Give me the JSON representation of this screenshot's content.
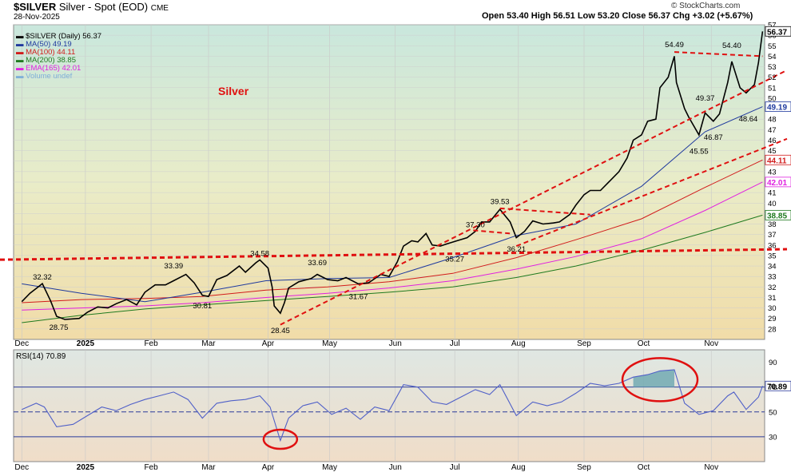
{
  "header": {
    "symbol": "$SILVER",
    "name": "Silver - Spot (EOD)",
    "exchange": "CME",
    "date": "28-Nov-2025",
    "ohlc": "Open 53.40  High 56.51  Low 53.20  Close 56.37  Chg +3.02 (+5.67%)",
    "brand": "© StockCharts.com"
  },
  "legend": [
    {
      "label": "$SILVER (Daily) 56.37",
      "color": "#000000"
    },
    {
      "label": "MA(50) 49.19",
      "color": "#1f3a9e"
    },
    {
      "label": "MA(100) 44.11",
      "color": "#d11b1b"
    },
    {
      "label": "MA(200) 38.85",
      "color": "#1f7a1f"
    },
    {
      "label": "EMA(165) 42.01",
      "color": "#e020e0"
    },
    {
      "label": "Volume undef",
      "color": "#7fb0d8"
    }
  ],
  "annotation_title": "Silver",
  "chart_data": [
    {
      "type": "line",
      "title": "$SILVER (Daily)",
      "y_ticks": [
        28,
        29,
        30,
        31,
        32,
        33,
        34,
        35,
        36,
        37,
        38,
        39,
        40,
        41,
        42,
        43,
        44,
        45,
        46,
        47,
        48,
        49,
        50,
        51,
        52,
        53,
        54,
        55,
        56,
        57
      ],
      "ylim": [
        27,
        57
      ],
      "x_tick_labels": [
        "Dec",
        "2025",
        "Feb",
        "Mar",
        "Apr",
        "May",
        "Jun",
        "Jul",
        "Aug",
        "Sep",
        "Oct",
        "Nov"
      ],
      "price_points": [
        [
          "2024-12-02",
          30.6
        ],
        [
          "2024-12-06",
          31.4
        ],
        [
          "2024-12-10",
          32.0
        ],
        [
          "2024-12-12",
          32.32
        ],
        [
          "2024-12-16",
          30.7
        ],
        [
          "2024-12-19",
          29.2
        ],
        [
          "2024-12-23",
          28.9
        ],
        [
          "2024-12-30",
          29.0
        ],
        [
          "2025-01-03",
          29.6
        ],
        [
          "2025-01-08",
          30.1
        ],
        [
          "2025-01-13",
          30.0
        ],
        [
          "2025-01-17",
          30.4
        ],
        [
          "2025-01-22",
          30.8
        ],
        [
          "2025-01-27",
          30.3
        ],
        [
          "2025-01-31",
          31.5
        ],
        [
          "2025-02-05",
          32.2
        ],
        [
          "2025-02-10",
          32.2
        ],
        [
          "2025-02-14",
          32.6
        ],
        [
          "2025-02-20",
          33.2
        ],
        [
          "2025-02-24",
          32.4
        ],
        [
          "2025-02-28",
          31.2
        ],
        [
          "2025-03-03",
          31.1
        ],
        [
          "2025-03-07",
          32.7
        ],
        [
          "2025-03-12",
          33.1
        ],
        [
          "2025-03-18",
          34.0
        ],
        [
          "2025-03-21",
          33.4
        ],
        [
          "2025-03-26",
          34.3
        ],
        [
          "2025-03-28",
          34.58
        ],
        [
          "2025-04-01",
          33.8
        ],
        [
          "2025-04-03",
          32.0
        ],
        [
          "2025-04-04",
          30.2
        ],
        [
          "2025-04-07",
          29.5
        ],
        [
          "2025-04-09",
          30.5
        ],
        [
          "2025-04-11",
          31.9
        ],
        [
          "2025-04-16",
          32.5
        ],
        [
          "2025-04-22",
          32.8
        ],
        [
          "2025-04-25",
          33.2
        ],
        [
          "2025-04-30",
          32.7
        ],
        [
          "2025-05-05",
          32.6
        ],
        [
          "2025-05-09",
          32.9
        ],
        [
          "2025-05-15",
          32.3
        ],
        [
          "2025-05-20",
          32.4
        ],
        [
          "2025-05-26",
          33.2
        ],
        [
          "2025-05-30",
          33.0
        ],
        [
          "2025-06-03",
          34.4
        ],
        [
          "2025-06-06",
          35.9
        ],
        [
          "2025-06-10",
          36.4
        ],
        [
          "2025-06-13",
          36.3
        ],
        [
          "2025-06-17",
          37.1
        ],
        [
          "2025-06-20",
          36.0
        ],
        [
          "2025-06-24",
          35.9
        ],
        [
          "2025-06-27",
          36.1
        ],
        [
          "2025-07-02",
          36.4
        ],
        [
          "2025-07-07",
          36.7
        ],
        [
          "2025-07-11",
          37.3
        ],
        [
          "2025-07-14",
          38.2
        ],
        [
          "2025-07-18",
          38.2
        ],
        [
          "2025-07-23",
          39.4
        ],
        [
          "2025-07-28",
          38.2
        ],
        [
          "2025-07-31",
          36.7
        ],
        [
          "2025-08-04",
          37.3
        ],
        [
          "2025-08-08",
          38.3
        ],
        [
          "2025-08-13",
          38.0
        ],
        [
          "2025-08-18",
          38.1
        ],
        [
          "2025-08-21",
          38.2
        ],
        [
          "2025-08-26",
          38.9
        ],
        [
          "2025-08-29",
          39.8
        ],
        [
          "2025-09-02",
          40.8
        ],
        [
          "2025-09-05",
          41.2
        ],
        [
          "2025-09-10",
          41.2
        ],
        [
          "2025-09-15",
          42.2
        ],
        [
          "2025-09-19",
          43.0
        ],
        [
          "2025-09-23",
          44.3
        ],
        [
          "2025-09-26",
          46.0
        ],
        [
          "2025-09-30",
          46.5
        ],
        [
          "2025-10-03",
          47.8
        ],
        [
          "2025-10-07",
          48.0
        ],
        [
          "2025-10-09",
          51.0
        ],
        [
          "2025-10-13",
          52.0
        ],
        [
          "2025-10-16",
          54.0
        ],
        [
          "2025-10-17",
          51.5
        ],
        [
          "2025-10-21",
          49.0
        ],
        [
          "2025-10-23",
          48.2
        ],
        [
          "2025-10-28",
          46.5
        ],
        [
          "2025-10-31",
          48.6
        ],
        [
          "2025-11-04",
          47.8
        ],
        [
          "2025-11-07",
          48.5
        ],
        [
          "2025-11-11",
          51.5
        ],
        [
          "2025-11-13",
          53.5
        ],
        [
          "2025-11-17",
          51.0
        ],
        [
          "2025-11-20",
          50.5
        ],
        [
          "2025-11-24",
          51.3
        ],
        [
          "2025-11-26",
          53.4
        ],
        [
          "2025-11-28",
          56.37
        ]
      ],
      "labels": [
        {
          "text": "32.32",
          "date": "2024-12-12",
          "y": 32.32
        },
        {
          "text": "28.75",
          "date": "2024-12-20",
          "y": 28.75
        },
        {
          "text": "33.39",
          "date": "2025-02-14",
          "y": 33.39
        },
        {
          "text": "30.81",
          "date": "2025-02-28",
          "y": 30.81
        },
        {
          "text": "34.58",
          "date": "2025-03-28",
          "y": 34.58
        },
        {
          "text": "28.45",
          "date": "2025-04-07",
          "y": 28.45
        },
        {
          "text": "33.69",
          "date": "2025-04-25",
          "y": 33.69
        },
        {
          "text": "31.67",
          "date": "2025-05-15",
          "y": 31.67
        },
        {
          "text": "37.30",
          "date": "2025-07-11",
          "y": 37.3
        },
        {
          "text": "35.27",
          "date": "2025-07-01",
          "y": 35.27
        },
        {
          "text": "39.53",
          "date": "2025-07-23",
          "y": 39.53
        },
        {
          "text": "36.21",
          "date": "2025-07-31",
          "y": 36.21
        },
        {
          "text": "54.49",
          "date": "2025-10-16",
          "y": 54.49
        },
        {
          "text": "49.37",
          "date": "2025-10-31",
          "y": 49.37
        },
        {
          "text": "45.55",
          "date": "2025-10-28",
          "y": 45.55
        },
        {
          "text": "46.87",
          "date": "2025-11-04",
          "y": 46.87
        },
        {
          "text": "54.40",
          "date": "2025-11-13",
          "y": 54.4
        },
        {
          "text": "48.64",
          "date": "2025-11-21",
          "y": 48.64
        }
      ],
      "ma50": [
        [
          "2024-12-02",
          32.3
        ],
        [
          "2024-12-31",
          31.4
        ],
        [
          "2025-01-31",
          30.6
        ],
        [
          "2025-02-28",
          31.5
        ],
        [
          "2025-03-31",
          32.6
        ],
        [
          "2025-04-30",
          32.8
        ],
        [
          "2025-05-30",
          32.9
        ],
        [
          "2025-06-30",
          34.8
        ],
        [
          "2025-07-31",
          36.9
        ],
        [
          "2025-08-29",
          38.0
        ],
        [
          "2025-09-30",
          41.6
        ],
        [
          "2025-10-31",
          46.8
        ],
        [
          "2025-11-28",
          49.19
        ]
      ],
      "ma100": [
        [
          "2024-12-02",
          30.5
        ],
        [
          "2024-12-31",
          30.8
        ],
        [
          "2025-01-31",
          30.9
        ],
        [
          "2025-02-28",
          31.1
        ],
        [
          "2025-03-31",
          31.7
        ],
        [
          "2025-04-30",
          32.0
        ],
        [
          "2025-05-30",
          32.5
        ],
        [
          "2025-06-30",
          33.3
        ],
        [
          "2025-07-31",
          34.8
        ],
        [
          "2025-08-29",
          36.5
        ],
        [
          "2025-09-30",
          38.5
        ],
        [
          "2025-10-31",
          41.5
        ],
        [
          "2025-11-28",
          44.11
        ]
      ],
      "ma200": [
        [
          "2024-12-02",
          28.6
        ],
        [
          "2024-12-31",
          29.3
        ],
        [
          "2025-01-31",
          29.9
        ],
        [
          "2025-02-28",
          30.3
        ],
        [
          "2025-03-31",
          30.7
        ],
        [
          "2025-04-30",
          31.1
        ],
        [
          "2025-05-30",
          31.5
        ],
        [
          "2025-06-30",
          32.0
        ],
        [
          "2025-07-31",
          32.9
        ],
        [
          "2025-08-29",
          34.0
        ],
        [
          "2025-09-30",
          35.5
        ],
        [
          "2025-10-31",
          37.2
        ],
        [
          "2025-11-28",
          38.85
        ]
      ],
      "ema165": [
        [
          "2024-12-02",
          29.8
        ],
        [
          "2024-12-31",
          30.0
        ],
        [
          "2025-01-31",
          30.2
        ],
        [
          "2025-02-28",
          30.5
        ],
        [
          "2025-03-31",
          31.0
        ],
        [
          "2025-04-30",
          31.4
        ],
        [
          "2025-05-30",
          31.9
        ],
        [
          "2025-06-30",
          32.6
        ],
        [
          "2025-07-31",
          33.7
        ],
        [
          "2025-08-29",
          34.9
        ],
        [
          "2025-09-30",
          36.6
        ],
        [
          "2025-10-31",
          39.3
        ],
        [
          "2025-11-28",
          42.01
        ]
      ],
      "trendlines": [
        {
          "from": [
            "2024-11-28",
            34.6
          ],
          "to": [
            "2025-11-28",
            35.6
          ]
        },
        {
          "from": [
            "2025-04-07",
            28.4
          ],
          "to": [
            "2025-11-28",
            51.5
          ]
        },
        {
          "from": [
            "2025-07-31",
            35.9
          ],
          "to": [
            "2025-11-28",
            45.2
          ]
        },
        {
          "from": [
            "2025-07-10",
            37.4
          ],
          "to": [
            "2025-07-28",
            37.1
          ]
        },
        {
          "from": [
            "2025-07-23",
            39.5
          ],
          "to": [
            "2025-09-05",
            38.9
          ]
        },
        {
          "from": [
            "2025-10-16",
            54.4
          ],
          "to": [
            "2025-11-28",
            54.0
          ]
        }
      ],
      "last_value_tags": [
        {
          "text": "56.37",
          "y": 56.37,
          "color": "#000000",
          "bg": "#ffffff"
        },
        {
          "text": "49.19",
          "y": 49.19,
          "color": "#1f3a9e",
          "bg": "#ffffff"
        },
        {
          "text": "44.11",
          "y": 44.11,
          "color": "#d11b1b",
          "bg": "#ffffff"
        },
        {
          "text": "42.01",
          "y": 42.01,
          "color": "#e020e0",
          "bg": "#ffffff"
        },
        {
          "text": "38.85",
          "y": 38.85,
          "color": "#1f7a1f",
          "bg": "#ffffff"
        }
      ]
    },
    {
      "type": "line",
      "title": "RSI(14) 70.89",
      "y_ticks": [
        30,
        50,
        70,
        90
      ],
      "ylim": [
        10,
        100
      ],
      "reference_lines": [
        30,
        50,
        70
      ],
      "last_value_tag": "70.89",
      "rsi_points": [
        [
          "2024-12-02",
          52
        ],
        [
          "2024-12-09",
          57
        ],
        [
          "2024-12-13",
          54
        ],
        [
          "2024-12-19",
          38
        ],
        [
          "2024-12-27",
          40
        ],
        [
          "2025-01-03",
          47
        ],
        [
          "2025-01-10",
          54
        ],
        [
          "2025-01-17",
          51
        ],
        [
          "2025-01-24",
          56
        ],
        [
          "2025-01-31",
          60
        ],
        [
          "2025-02-07",
          63
        ],
        [
          "2025-02-14",
          66
        ],
        [
          "2025-02-21",
          60
        ],
        [
          "2025-02-28",
          45
        ],
        [
          "2025-03-07",
          57
        ],
        [
          "2025-03-14",
          59
        ],
        [
          "2025-03-21",
          60
        ],
        [
          "2025-03-28",
          63
        ],
        [
          "2025-04-02",
          54
        ],
        [
          "2025-04-07",
          27
        ],
        [
          "2025-04-11",
          45
        ],
        [
          "2025-04-18",
          55
        ],
        [
          "2025-04-25",
          58
        ],
        [
          "2025-05-02",
          48
        ],
        [
          "2025-05-09",
          53
        ],
        [
          "2025-05-16",
          44
        ],
        [
          "2025-05-23",
          54
        ],
        [
          "2025-05-30",
          51
        ],
        [
          "2025-06-06",
          72
        ],
        [
          "2025-06-13",
          70
        ],
        [
          "2025-06-20",
          58
        ],
        [
          "2025-06-27",
          56
        ],
        [
          "2025-07-04",
          62
        ],
        [
          "2025-07-11",
          68
        ],
        [
          "2025-07-18",
          64
        ],
        [
          "2025-07-23",
          72
        ],
        [
          "2025-07-31",
          47
        ],
        [
          "2025-08-08",
          58
        ],
        [
          "2025-08-15",
          55
        ],
        [
          "2025-08-22",
          58
        ],
        [
          "2025-08-29",
          65
        ],
        [
          "2025-09-05",
          73
        ],
        [
          "2025-09-12",
          71
        ],
        [
          "2025-09-19",
          73
        ],
        [
          "2025-09-26",
          78
        ],
        [
          "2025-10-03",
          80
        ],
        [
          "2025-10-09",
          83
        ],
        [
          "2025-10-16",
          84
        ],
        [
          "2025-10-21",
          57
        ],
        [
          "2025-10-28",
          48
        ],
        [
          "2025-11-04",
          51
        ],
        [
          "2025-11-11",
          63
        ],
        [
          "2025-11-14",
          66
        ],
        [
          "2025-11-20",
          52
        ],
        [
          "2025-11-26",
          62
        ],
        [
          "2025-11-28",
          70.89
        ]
      ]
    }
  ]
}
